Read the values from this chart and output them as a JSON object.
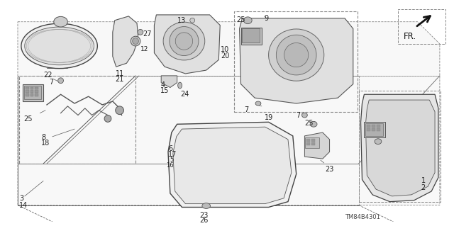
{
  "background_color": "#ffffff",
  "diagram_code": "TM84B4301",
  "fr_label": "FR.",
  "fig_width": 6.4,
  "fig_height": 3.19,
  "dpi": 100,
  "line_color": "#444444",
  "text_color": "#222222",
  "label_fontsize": 7.0
}
